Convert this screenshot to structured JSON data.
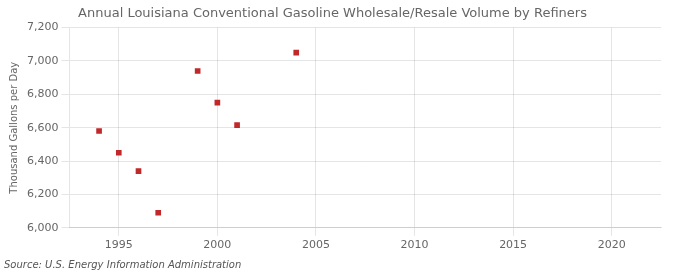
{
  "chart_data": {
    "type": "scatter",
    "title": "Annual Louisiana Conventional Gasoline Wholesale/Resale Volume by Refiners",
    "ylabel": "Thousand Gallons per Day",
    "annotation": "Source: U.S. Energy Information Administration",
    "x": [
      1994,
      1995,
      1996,
      1997,
      1999,
      2000,
      2001,
      2004
    ],
    "values": [
      6580,
      6450,
      6340,
      6090,
      6940,
      6750,
      6615,
      7050
    ],
    "color": "#c0282a",
    "marker": "square",
    "xlim": [
      1992.5,
      2022.5
    ],
    "ylim": [
      6000,
      7200
    ],
    "xticks": [
      1995,
      2000,
      2005,
      2010,
      2015,
      2020
    ],
    "yticks": [
      {
        "value": 6000,
        "label": "6,000"
      },
      {
        "value": 6200,
        "label": "6,200"
      },
      {
        "value": 6400,
        "label": "6,400"
      },
      {
        "value": 6600,
        "label": "6,600"
      },
      {
        "value": 6800,
        "label": "6,800"
      },
      {
        "value": 7000,
        "label": "7,000"
      },
      {
        "value": 7200,
        "label": "7,200"
      }
    ],
    "grid": true
  }
}
